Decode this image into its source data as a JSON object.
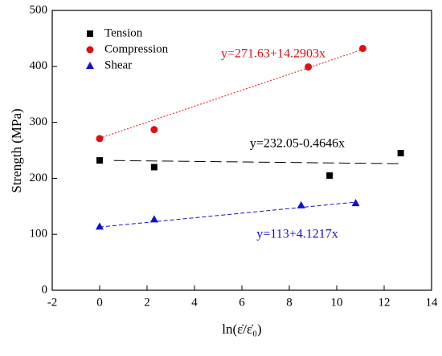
{
  "chart_data": {
    "type": "scatter",
    "xlabel": "ln(ε̇/ε̇₀)",
    "ylabel": "Strength (MPa)",
    "xlim": [
      -2,
      14
    ],
    "xticks": [
      -2,
      0,
      2,
      4,
      6,
      8,
      10,
      12,
      14
    ],
    "ylim": [
      0,
      500
    ],
    "yticks": [
      0,
      100,
      200,
      300,
      400,
      500
    ],
    "legend": "upper left",
    "series": [
      {
        "name": "Tension",
        "color": "#000000",
        "marker": "square",
        "x": [
          0,
          2.3,
          9.7,
          12.7
        ],
        "values": [
          232,
          220,
          205,
          245
        ],
        "fit": {
          "label": "y=232.05-0.4646x",
          "intercept": 232.05,
          "slope": -0.4646,
          "xrange": [
            0.6,
            12.7
          ],
          "dash": "14 6"
        }
      },
      {
        "name": "Compression",
        "color": "#e01010",
        "marker": "circle",
        "x": [
          0,
          2.3,
          8.8,
          11.1
        ],
        "values": [
          271,
          287,
          399,
          432
        ],
        "fit": {
          "label": "y=271.63+14.2903x",
          "intercept": 271.63,
          "slope": 14.2903,
          "xrange": [
            0,
            11.1
          ],
          "dash": "2 2"
        }
      },
      {
        "name": "Shear",
        "color": "#1010d0",
        "marker": "triangle",
        "x": [
          0,
          2.3,
          8.5,
          10.8
        ],
        "values": [
          114,
          127,
          152,
          156
        ],
        "fit": {
          "label": "y=113+4.1217x",
          "intercept": 113,
          "slope": 4.1217,
          "xrange": [
            0,
            10.8
          ],
          "dash": "5 3"
        }
      }
    ]
  }
}
